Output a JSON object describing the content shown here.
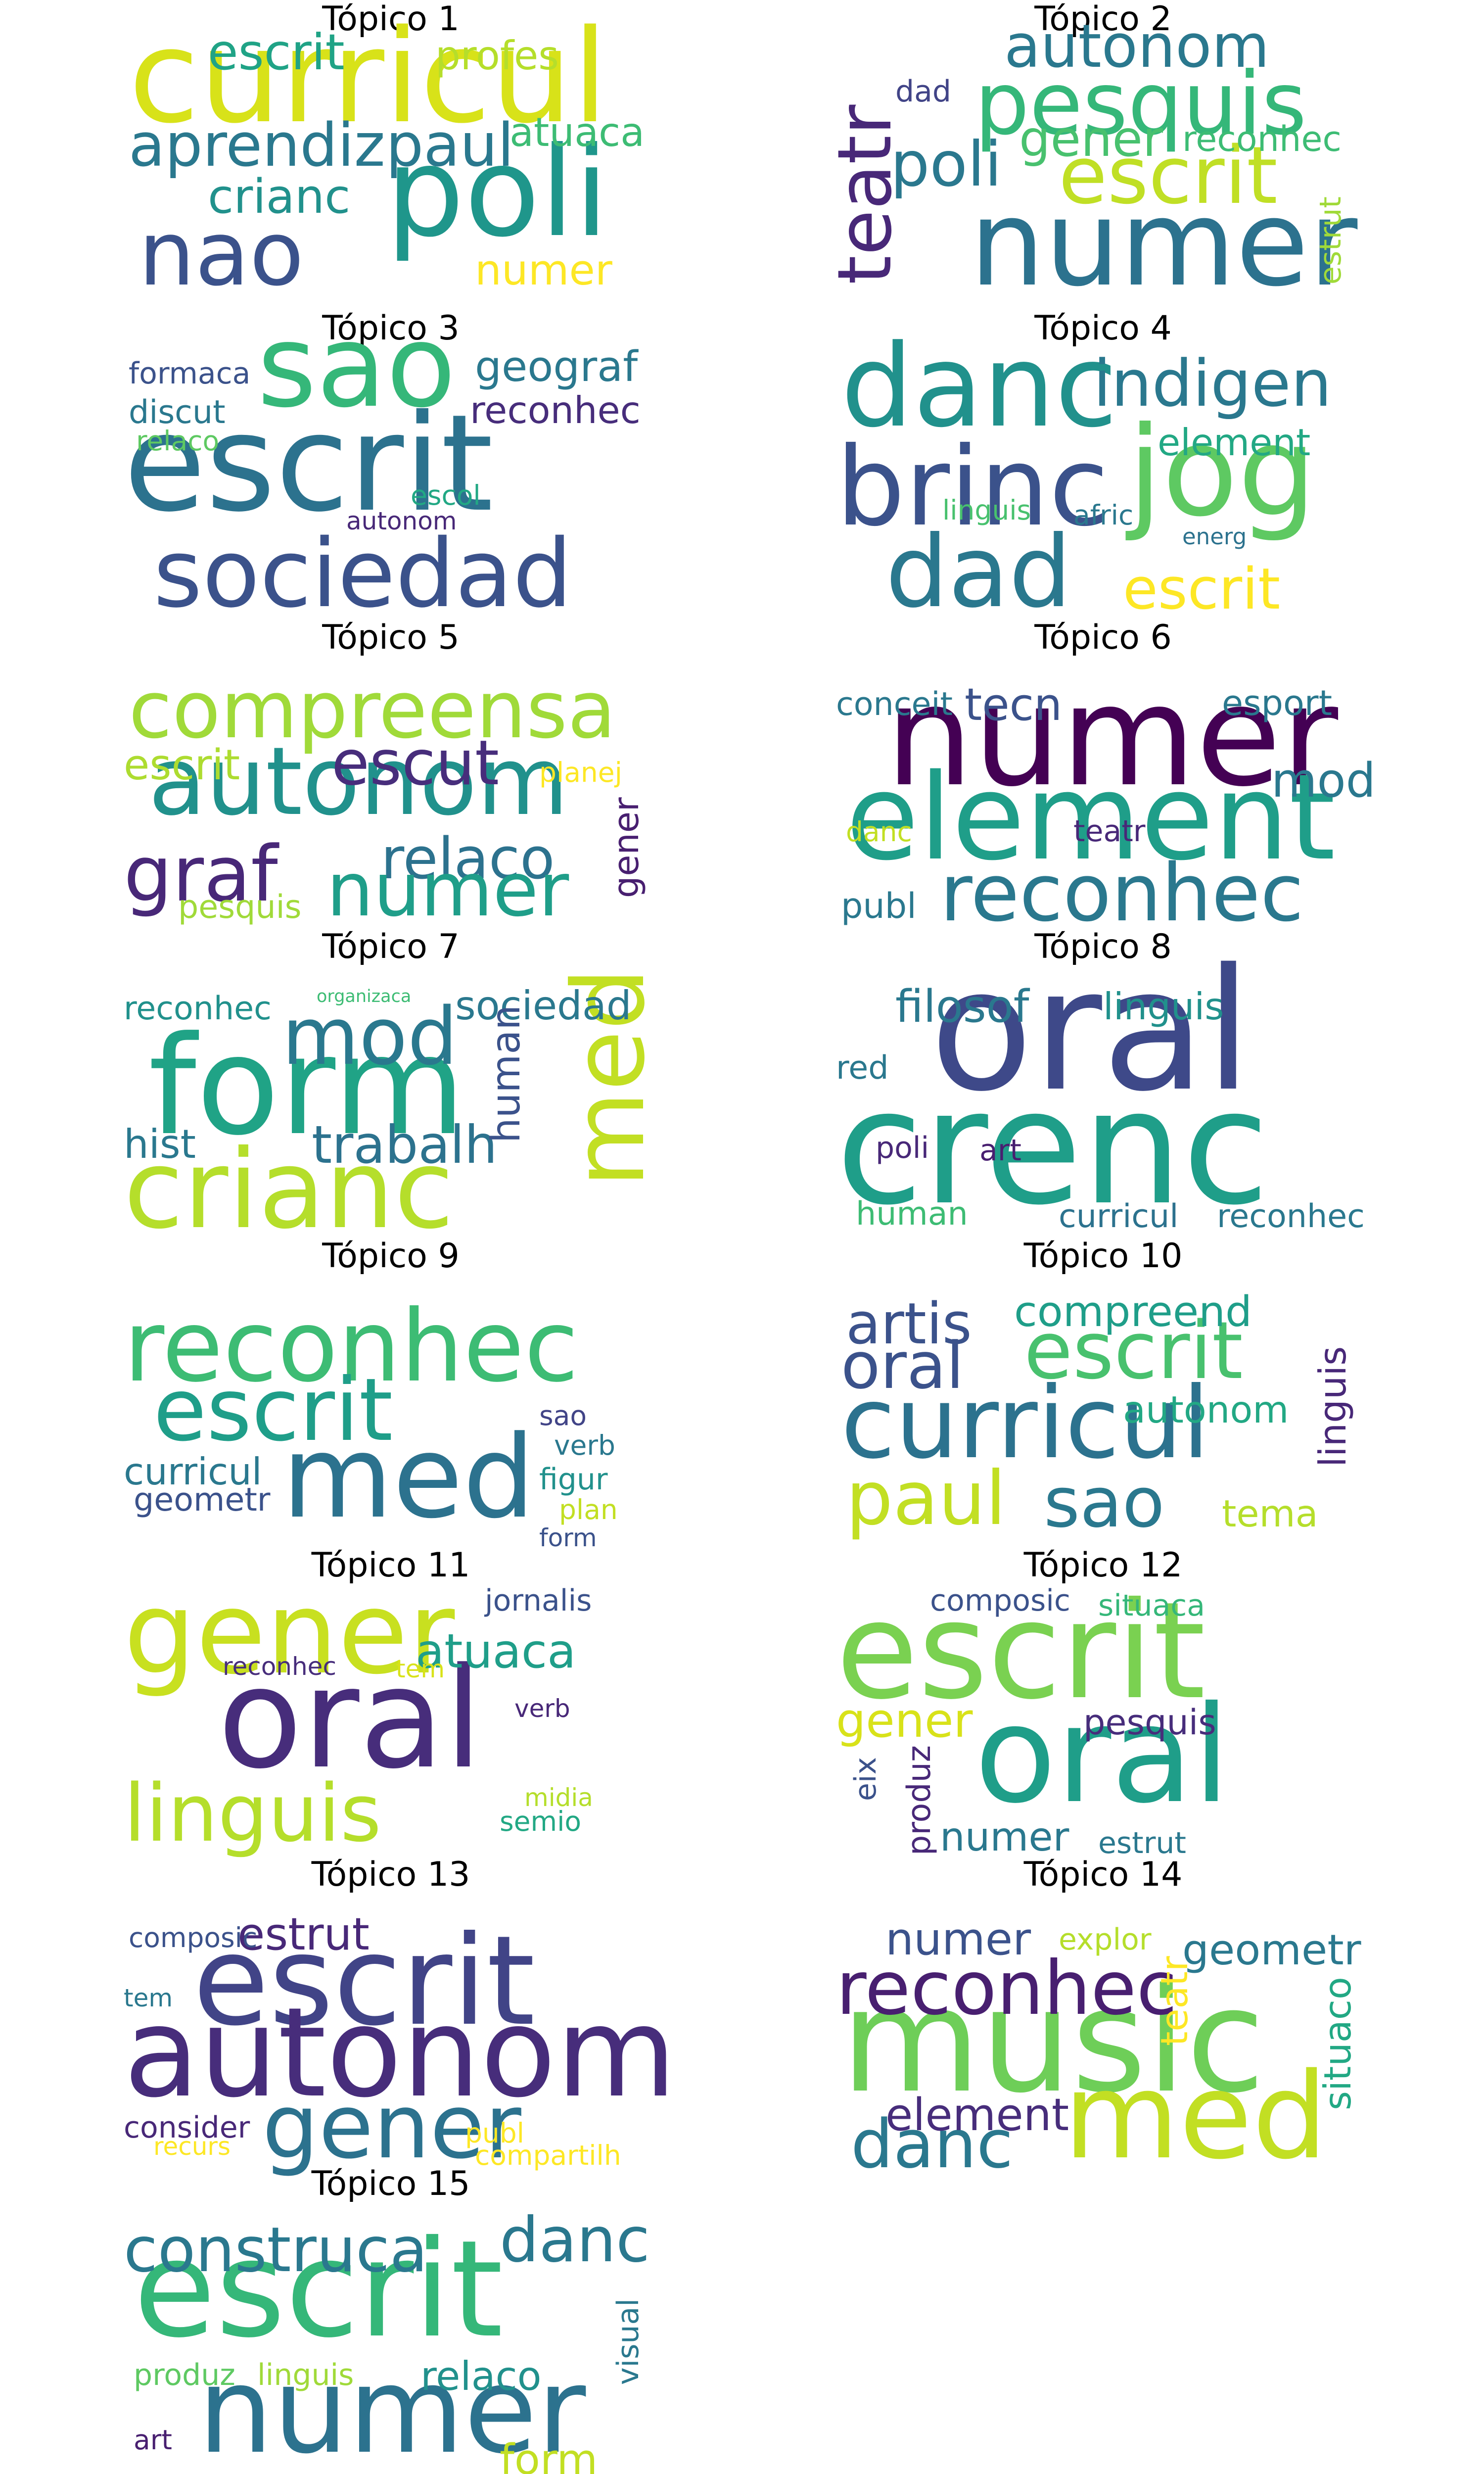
{
  "topics": [
    {
      "title": "Tópico 1",
      "words": [
        {
          "text": "curricul",
          "color": "#d8e219"
        },
        {
          "text": "poli",
          "color": "#1f968b"
        },
        {
          "text": "nao",
          "color": "#3b528b"
        },
        {
          "text": "aprendiz",
          "color": "#2a788e"
        },
        {
          "text": "paul",
          "color": "#2a788e"
        },
        {
          "text": "escrit",
          "color": "#20a386"
        },
        {
          "text": "profes",
          "color": "#b5de2b"
        },
        {
          "text": "crianc",
          "color": "#21918c"
        },
        {
          "text": "atuaca",
          "color": "#3dbc74"
        },
        {
          "text": "numer",
          "color": "#fde725"
        }
      ]
    },
    {
      "title": "Tópico 2",
      "words": [
        {
          "text": "numer",
          "color": "#2c728e"
        },
        {
          "text": "pesquis",
          "color": "#35b779"
        },
        {
          "text": "autonom",
          "color": "#2a788e"
        },
        {
          "text": "teatr",
          "color": "#482878"
        },
        {
          "text": "escrit",
          "color": "#c0df25"
        },
        {
          "text": "poli",
          "color": "#2a788e"
        },
        {
          "text": "gener",
          "color": "#48c16e"
        },
        {
          "text": "reconhec",
          "color": "#3dbc74"
        },
        {
          "text": "dad",
          "color": "#414487"
        },
        {
          "text": "estrut",
          "color": "#a0da39"
        }
      ]
    },
    {
      "title": "Tópico 3",
      "words": [
        {
          "text": "escrit",
          "color": "#2c728e"
        },
        {
          "text": "sociedad",
          "color": "#3b528b"
        },
        {
          "text": "sao",
          "color": "#35b779"
        },
        {
          "text": "geograf",
          "color": "#2a788e"
        },
        {
          "text": "reconhec",
          "color": "#472d7b"
        },
        {
          "text": "formaca",
          "color": "#3b528b"
        },
        {
          "text": "discut",
          "color": "#2a788e"
        },
        {
          "text": "relaco",
          "color": "#5ec962"
        },
        {
          "text": "escol",
          "color": "#22a884"
        },
        {
          "text": "autonom",
          "color": "#482878"
        }
      ]
    },
    {
      "title": "Tópico 4",
      "words": [
        {
          "text": "danc",
          "color": "#21918c"
        },
        {
          "text": "brinc",
          "color": "#3b528b"
        },
        {
          "text": "jog",
          "color": "#5ec962"
        },
        {
          "text": "dad",
          "color": "#2a788e"
        },
        {
          "text": "indigen",
          "color": "#2a788e"
        },
        {
          "text": "element",
          "color": "#22a884"
        },
        {
          "text": "escrit",
          "color": "#fde725"
        },
        {
          "text": "linguis",
          "color": "#48c16e"
        },
        {
          "text": "afric",
          "color": "#2a788e"
        },
        {
          "text": "energ",
          "color": "#2c728e"
        }
      ]
    },
    {
      "title": "Tópico 5",
      "words": [
        {
          "text": "compreensa",
          "color": "#a0da39"
        },
        {
          "text": "autonom",
          "color": "#21918c"
        },
        {
          "text": "escut",
          "color": "#472d7b"
        },
        {
          "text": "graf",
          "color": "#482878"
        },
        {
          "text": "relaco",
          "color": "#2c728e"
        },
        {
          "text": "numer",
          "color": "#1f9e89"
        },
        {
          "text": "escrit",
          "color": "#addc30"
        },
        {
          "text": "planej",
          "color": "#fde725"
        },
        {
          "text": "gener",
          "color": "#481f70"
        },
        {
          "text": "pesquis",
          "color": "#a0da39"
        }
      ]
    },
    {
      "title": "Tópico 6",
      "words": [
        {
          "text": "numer",
          "color": "#440154"
        },
        {
          "text": "element",
          "color": "#1f9e89"
        },
        {
          "text": "reconhec",
          "color": "#2a788e"
        },
        {
          "text": "tecn",
          "color": "#3b528b"
        },
        {
          "text": "conceit",
          "color": "#2a788e"
        },
        {
          "text": "esport",
          "color": "#2a788e"
        },
        {
          "text": "mod",
          "color": "#2a788e"
        },
        {
          "text": "danc",
          "color": "#c2df23"
        },
        {
          "text": "teatr",
          "color": "#482878"
        },
        {
          "text": "publ",
          "color": "#2a788e"
        }
      ]
    },
    {
      "title": "Tópico 7",
      "words": [
        {
          "text": "form",
          "color": "#20a386"
        },
        {
          "text": "crianc",
          "color": "#b5de2b"
        },
        {
          "text": "med",
          "color": "#c2df23"
        },
        {
          "text": "mod",
          "color": "#2a788e"
        },
        {
          "text": "trabalh",
          "color": "#2c728e"
        },
        {
          "text": "sociedad",
          "color": "#2a788e"
        },
        {
          "text": "reconhec",
          "color": "#21918c"
        },
        {
          "text": "hist",
          "color": "#2a788e"
        },
        {
          "text": "human",
          "color": "#3b528b"
        },
        {
          "text": "organizaca",
          "color": "#3dbc74"
        }
      ]
    },
    {
      "title": "Tópico 8",
      "words": [
        {
          "text": "oral",
          "color": "#3e4989"
        },
        {
          "text": "crenc",
          "color": "#1f9e89"
        },
        {
          "text": "filosof",
          "color": "#2a788e"
        },
        {
          "text": "linguis",
          "color": "#21918c"
        },
        {
          "text": "red",
          "color": "#2a788e"
        },
        {
          "text": "poli",
          "color": "#482878"
        },
        {
          "text": "art",
          "color": "#481f70"
        },
        {
          "text": "human",
          "color": "#3dbc74"
        },
        {
          "text": "curricul",
          "color": "#2c728e"
        },
        {
          "text": "reconhec",
          "color": "#2a788e"
        }
      ]
    },
    {
      "title": "Tópico 9",
      "words": [
        {
          "text": "reconhec",
          "color": "#3dbc74"
        },
        {
          "text": "med",
          "color": "#2c728e"
        },
        {
          "text": "escrit",
          "color": "#1f9e89"
        },
        {
          "text": "curricul",
          "color": "#2a788e"
        },
        {
          "text": "geometr",
          "color": "#3b528b"
        },
        {
          "text": "sao",
          "color": "#414487"
        },
        {
          "text": "verb",
          "color": "#2a788e"
        },
        {
          "text": "figur",
          "color": "#21918c"
        },
        {
          "text": "plan",
          "color": "#c2df23"
        },
        {
          "text": "form",
          "color": "#3b528b"
        }
      ]
    },
    {
      "title": "Tópico 10",
      "words": [
        {
          "text": "curricul",
          "color": "#2c728e"
        },
        {
          "text": "escrit",
          "color": "#48c16e"
        },
        {
          "text": "oral",
          "color": "#3b528b"
        },
        {
          "text": "artis",
          "color": "#3b528b"
        },
        {
          "text": "compreend",
          "color": "#1f9e89"
        },
        {
          "text": "paul",
          "color": "#c2df23"
        },
        {
          "text": "sao",
          "color": "#2a788e"
        },
        {
          "text": "autonom",
          "color": "#22a884"
        },
        {
          "text": "linguis",
          "color": "#482878"
        },
        {
          "text": "tema",
          "color": "#b5de2b"
        }
      ]
    },
    {
      "title": "Tópico 11",
      "words": [
        {
          "text": "gener",
          "color": "#c8e020"
        },
        {
          "text": "oral",
          "color": "#472d7b"
        },
        {
          "text": "linguis",
          "color": "#b5de2b"
        },
        {
          "text": "atuaca",
          "color": "#1f9e89"
        },
        {
          "text": "jornalis",
          "color": "#3b528b"
        },
        {
          "text": "reconhec",
          "color": "#472d7b"
        },
        {
          "text": "tem",
          "color": "#d8e219"
        },
        {
          "text": "verb",
          "color": "#482878"
        },
        {
          "text": "midia",
          "color": "#b5de2b"
        },
        {
          "text": "semio",
          "color": "#22a884"
        }
      ]
    },
    {
      "title": "Tópico 12",
      "words": [
        {
          "text": "escrit",
          "color": "#7ad151"
        },
        {
          "text": "oral",
          "color": "#1f9e89"
        },
        {
          "text": "gener",
          "color": "#d8e219"
        },
        {
          "text": "composic",
          "color": "#3b528b"
        },
        {
          "text": "situaca",
          "color": "#35b779"
        },
        {
          "text": "pesquis",
          "color": "#472d7b"
        },
        {
          "text": "eix",
          "color": "#3b528b"
        },
        {
          "text": "produz",
          "color": "#482878"
        },
        {
          "text": "numer",
          "color": "#2a788e"
        },
        {
          "text": "estrut",
          "color": "#2a788e"
        }
      ]
    },
    {
      "title": "Tópico 13",
      "words": [
        {
          "text": "escrit",
          "color": "#414487"
        },
        {
          "text": "autonom",
          "color": "#472d7b"
        },
        {
          "text": "gener",
          "color": "#2c728e"
        },
        {
          "text": "estrut",
          "color": "#482878"
        },
        {
          "text": "composic",
          "color": "#3b528b"
        },
        {
          "text": "tem",
          "color": "#2a788e"
        },
        {
          "text": "consider",
          "color": "#482878"
        },
        {
          "text": "recurs",
          "color": "#fde725"
        },
        {
          "text": "publ",
          "color": "#fde725"
        },
        {
          "text": "compartilh",
          "color": "#fde725"
        }
      ]
    },
    {
      "title": "Tópico 14",
      "words": [
        {
          "text": "music",
          "color": "#6ece58"
        },
        {
          "text": "reconhec",
          "color": "#481f70"
        },
        {
          "text": "med",
          "color": "#c2df23"
        },
        {
          "text": "danc",
          "color": "#2a788e"
        },
        {
          "text": "element",
          "color": "#472d7b"
        },
        {
          "text": "numer",
          "color": "#3b528b"
        },
        {
          "text": "explor",
          "color": "#b5de2b"
        },
        {
          "text": "geometr",
          "color": "#2a788e"
        },
        {
          "text": "teatr",
          "color": "#fde725"
        },
        {
          "text": "situaco",
          "color": "#22a884"
        }
      ]
    },
    {
      "title": "Tópico 15",
      "words": [
        {
          "text": "escrit",
          "color": "#35b779"
        },
        {
          "text": "numer",
          "color": "#2c728e"
        },
        {
          "text": "construca",
          "color": "#2a788e"
        },
        {
          "text": "danc",
          "color": "#2a788e"
        },
        {
          "text": "relaco",
          "color": "#21918c"
        },
        {
          "text": "produz",
          "color": "#5ec962"
        },
        {
          "text": "linguis",
          "color": "#a0da39"
        },
        {
          "text": "visual",
          "color": "#2a788e"
        },
        {
          "text": "art",
          "color": "#481f70"
        },
        {
          "text": "form",
          "color": "#c2df23"
        }
      ]
    }
  ]
}
